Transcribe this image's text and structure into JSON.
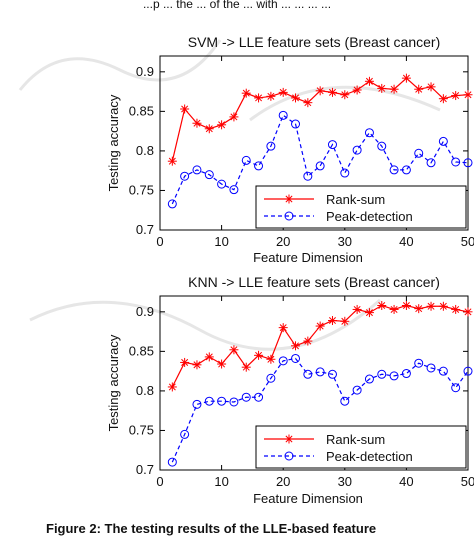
{
  "top_text": "...p ... the ... of the ... with ... ... ... ...",
  "caption": "Figure 2: The testing results of the LLE-based feature",
  "chart_data": [
    {
      "type": "line",
      "title": "SVM -> LLE feature sets (Breast cancer)",
      "xlabel": "Feature Dimension",
      "ylabel": "Testing accuracy",
      "xlim": [
        0,
        50
      ],
      "ylim": [
        0.7,
        0.92
      ],
      "xticks": [
        "0",
        "10",
        "20",
        "30",
        "40",
        "50"
      ],
      "yticks": [
        "0.7",
        "0.75",
        "0.8",
        "0.85",
        "0.9"
      ],
      "legend_position": "bottom-right",
      "x": [
        2,
        4,
        6,
        8,
        10,
        12,
        14,
        16,
        18,
        20,
        22,
        24,
        26,
        28,
        30,
        32,
        34,
        36,
        38,
        40,
        42,
        44,
        46,
        48,
        50
      ],
      "series": [
        {
          "name": "Rank-sum",
          "color": "#ff0000",
          "marker": "star",
          "values": [
            0.787,
            0.853,
            0.835,
            0.828,
            0.833,
            0.843,
            0.873,
            0.867,
            0.869,
            0.874,
            0.867,
            0.861,
            0.876,
            0.874,
            0.871,
            0.877,
            0.888,
            0.879,
            0.878,
            0.892,
            0.878,
            0.881,
            0.866,
            0.87,
            0.871
          ]
        },
        {
          "name": "Peak-detection",
          "color": "#0000ff",
          "marker": "circle",
          "values": [
            0.733,
            0.768,
            0.776,
            0.77,
            0.758,
            0.751,
            0.788,
            0.781,
            0.806,
            0.845,
            0.834,
            0.768,
            0.781,
            0.808,
            0.772,
            0.801,
            0.823,
            0.806,
            0.776,
            0.776,
            0.797,
            0.785,
            0.812,
            0.786,
            0.785
          ]
        }
      ]
    },
    {
      "type": "line",
      "title": "KNN -> LLE feature sets (Breast cancer)",
      "xlabel": "Feature Dimension",
      "ylabel": "Testing accuracy",
      "xlim": [
        0,
        50
      ],
      "ylim": [
        0.7,
        0.92
      ],
      "xticks": [
        "0",
        "10",
        "20",
        "30",
        "40",
        "50"
      ],
      "yticks": [
        "0.7",
        "0.75",
        "0.8",
        "0.85",
        "0.9"
      ],
      "legend_position": "bottom-right",
      "x": [
        2,
        4,
        6,
        8,
        10,
        12,
        14,
        16,
        18,
        20,
        22,
        24,
        26,
        28,
        30,
        32,
        34,
        36,
        38,
        40,
        42,
        44,
        46,
        48,
        50
      ],
      "series": [
        {
          "name": "Rank-sum",
          "color": "#ff0000",
          "marker": "star",
          "values": [
            0.805,
            0.836,
            0.833,
            0.843,
            0.834,
            0.852,
            0.83,
            0.845,
            0.84,
            0.88,
            0.857,
            0.863,
            0.882,
            0.889,
            0.888,
            0.903,
            0.899,
            0.908,
            0.903,
            0.908,
            0.904,
            0.907,
            0.907,
            0.903,
            0.9
          ]
        },
        {
          "name": "Peak-detection",
          "color": "#0000ff",
          "marker": "circle",
          "values": [
            0.71,
            0.745,
            0.783,
            0.787,
            0.787,
            0.786,
            0.792,
            0.792,
            0.816,
            0.838,
            0.841,
            0.821,
            0.824,
            0.821,
            0.787,
            0.801,
            0.815,
            0.821,
            0.819,
            0.822,
            0.835,
            0.829,
            0.825,
            0.804,
            0.825
          ]
        }
      ]
    }
  ]
}
